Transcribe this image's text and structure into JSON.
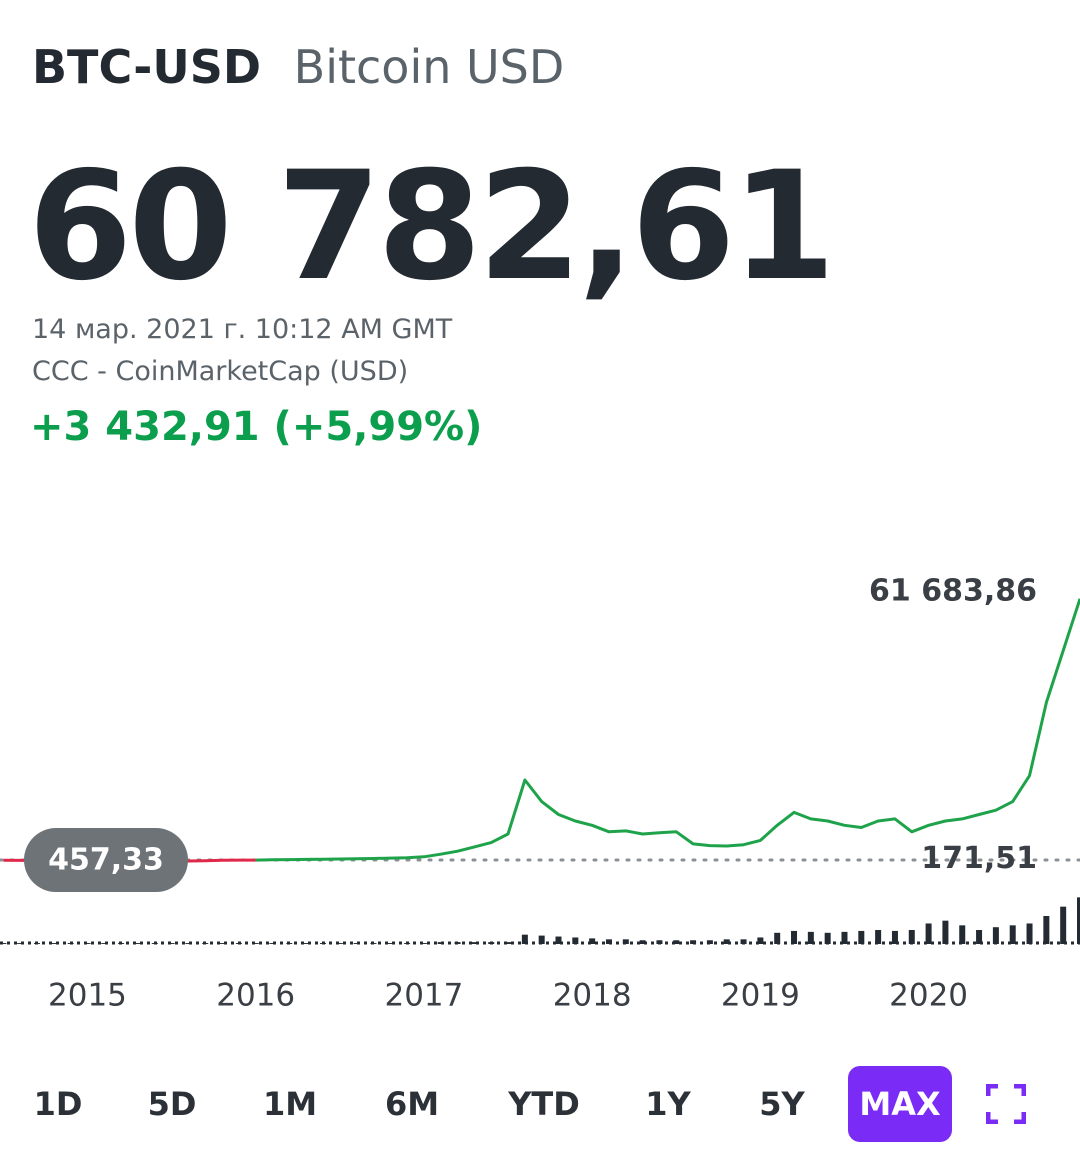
{
  "header": {
    "symbol": "BTC-USD",
    "name": "Bitcoin USD",
    "price": "60 782,61",
    "timestamp": "14 мар. 2021 г. 10:12 AM GMT",
    "source": "CCC - CoinMarketCap (USD)",
    "change": "+3 432,91 (+5,99%)"
  },
  "chart_data": {
    "type": "line",
    "x": [
      2014.5,
      2014.6,
      2014.7,
      2014.8,
      2014.9,
      2015.0,
      2015.1,
      2015.2,
      2015.3,
      2015.4,
      2015.5,
      2015.6,
      2015.7,
      2015.8,
      2015.9,
      2016.0,
      2016.1,
      2016.2,
      2016.3,
      2016.4,
      2016.5,
      2016.6,
      2016.7,
      2016.8,
      2016.9,
      2017.0,
      2017.1,
      2017.2,
      2017.3,
      2017.4,
      2017.5,
      2017.6,
      2017.7,
      2017.8,
      2017.9,
      2018.0,
      2018.1,
      2018.2,
      2018.3,
      2018.4,
      2018.5,
      2018.6,
      2018.7,
      2018.8,
      2018.9,
      2019.0,
      2019.1,
      2019.2,
      2019.3,
      2019.4,
      2019.5,
      2019.6,
      2019.7,
      2019.8,
      2019.9,
      2020.0,
      2020.1,
      2020.2,
      2020.3,
      2020.4,
      2020.5,
      2020.6,
      2020.7,
      2020.8,
      2020.9
    ],
    "series": [
      {
        "color": "#1fa34a",
        "below_color": "#e0284a",
        "values": [
          420,
          380,
          350,
          300,
          250,
          230,
          260,
          240,
          230,
          250,
          280,
          240,
          300,
          390,
          430,
          440,
          500,
          550,
          600,
          650,
          700,
          750,
          800,
          900,
          1000,
          1200,
          1800,
          2500,
          3500,
          4500,
          6500,
          19000,
          14000,
          11000,
          9500,
          8500,
          7000,
          7200,
          6500,
          6800,
          7000,
          4200,
          3800,
          3700,
          4000,
          5000,
          8500,
          11500,
          10000,
          9500,
          8500,
          8000,
          9500,
          10000,
          7000,
          8500,
          9500,
          10000,
          11000,
          12000,
          14000,
          20000,
          37000,
          49000,
          61000
        ]
      }
    ],
    "volume": {
      "color": "#232a31",
      "ylim": [
        0,
        60
      ],
      "values": [
        1,
        1,
        1,
        1,
        1,
        1,
        1,
        1,
        1,
        1,
        1,
        1,
        1,
        1,
        1,
        1,
        1,
        1,
        1,
        1,
        1,
        1,
        1,
        1,
        1,
        1,
        2,
        2,
        2,
        2,
        2,
        10,
        9,
        8,
        7,
        6,
        5,
        5,
        4,
        4,
        4,
        4,
        4,
        5,
        5,
        7,
        12,
        14,
        13,
        12,
        13,
        14,
        15,
        14,
        15,
        22,
        25,
        20,
        15,
        18,
        20,
        22,
        30,
        40,
        50
      ]
    },
    "xlim": [
      2014.48,
      2020.9
    ],
    "xticks": [
      2015,
      2016,
      2017,
      2018,
      2019,
      2020
    ],
    "ylim": [
      0,
      70000
    ],
    "reference": {
      "value": 457.33,
      "label": "457,33"
    },
    "high": {
      "value": 61683.86,
      "label": "61 683,86"
    },
    "low": {
      "value": 171.51,
      "label": "171,51"
    }
  },
  "ranges": [
    "1D",
    "5D",
    "1M",
    "6M",
    "YTD",
    "1Y",
    "5Y",
    "MAX"
  ],
  "selected_range": 7
}
